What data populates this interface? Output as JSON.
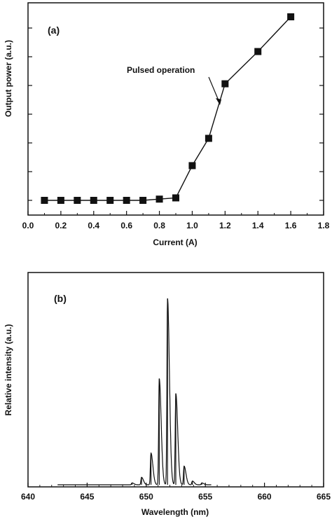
{
  "chart_data": [
    {
      "type": "line",
      "panel_label": "(a)",
      "xlabel": "Current (A)",
      "ylabel": "Output power (a.u.)",
      "xlim": [
        0.0,
        1.8
      ],
      "ylim": [
        0,
        10
      ],
      "xticks": [
        "0.0",
        "0.2",
        "0.4",
        "0.6",
        "0.8",
        "1.0",
        "1.2",
        "1.4",
        "1.6",
        "1.8"
      ],
      "grid": false,
      "annotation": "Pulsed operation",
      "series": [
        {
          "marker": "square",
          "x": [
            0.1,
            0.2,
            0.3,
            0.4,
            0.5,
            0.6,
            0.7,
            0.8,
            0.9,
            1.0,
            1.1,
            1.2,
            1.4,
            1.6
          ],
          "y": [
            0.0,
            0.0,
            0.0,
            0.0,
            0.0,
            0.0,
            0.0,
            0.05,
            0.1,
            1.4,
            2.5,
            4.7,
            6.0,
            7.4
          ]
        }
      ]
    },
    {
      "type": "line",
      "panel_label": "(b)",
      "xlabel": "Wavelength (nm)",
      "ylabel": "Relative intensity (a.u.)",
      "xlim": [
        640,
        665
      ],
      "ylim": [
        0,
        1.05
      ],
      "xticks": [
        "640",
        "645",
        "650",
        "655",
        "660",
        "665"
      ],
      "grid": false,
      "peaks": [
        {
          "x": 648.8,
          "y": 0.01
        },
        {
          "x": 649.6,
          "y": 0.04
        },
        {
          "x": 650.4,
          "y": 0.17
        },
        {
          "x": 651.1,
          "y": 0.57
        },
        {
          "x": 651.8,
          "y": 1.0
        },
        {
          "x": 652.5,
          "y": 0.49
        },
        {
          "x": 653.2,
          "y": 0.1
        },
        {
          "x": 653.9,
          "y": 0.02
        },
        {
          "x": 654.7,
          "y": 0.01
        }
      ]
    }
  ]
}
